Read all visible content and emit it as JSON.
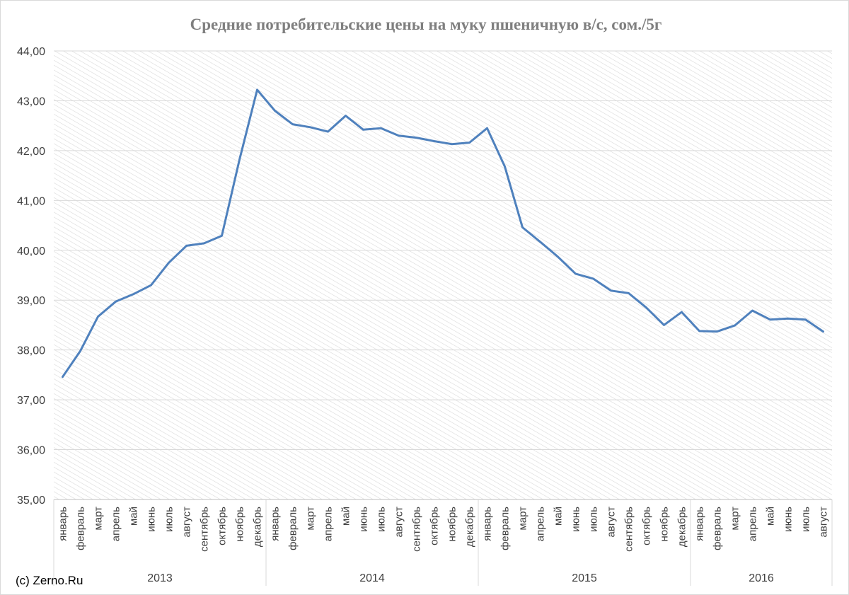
{
  "chart_data": {
    "type": "line",
    "title": "Средние потребительские цены на муку пшеничную в/с, сом./5г",
    "xlabel": "",
    "ylabel": "",
    "ylim": [
      35,
      44
    ],
    "yticks": [
      "35,00",
      "36,00",
      "37,00",
      "38,00",
      "39,00",
      "40,00",
      "41,00",
      "42,00",
      "43,00",
      "44,00"
    ],
    "grid": true,
    "legend": "none",
    "line_color": "#4f81bd",
    "categories": [
      "январь",
      "февраль",
      "март",
      "апрель",
      "май",
      "июнь",
      "июль",
      "август",
      "сентябрь",
      "октябрь",
      "ноябрь",
      "декабрь",
      "январь",
      "февраль",
      "март",
      "апрель",
      "май",
      "июнь",
      "июль",
      "август",
      "сентябрь",
      "октябрь",
      "ноябрь",
      "декабрь",
      "январь",
      "февраль",
      "март",
      "апрель",
      "май",
      "июнь",
      "июль",
      "август",
      "сентябрь",
      "октябрь",
      "ноябрь",
      "декабрь",
      "январь",
      "февраль",
      "март",
      "апрель",
      "май",
      "июнь",
      "июль",
      "август"
    ],
    "groups": [
      {
        "label": "2013",
        "count": 12
      },
      {
        "label": "2014",
        "count": 12
      },
      {
        "label": "2015",
        "count": 12
      },
      {
        "label": "2016",
        "count": 8
      }
    ],
    "series": [
      {
        "values": [
          37.46,
          37.98,
          38.67,
          38.97,
          39.12,
          39.3,
          39.75,
          40.09,
          40.14,
          40.29,
          41.82,
          43.22,
          42.8,
          42.53,
          42.47,
          42.38,
          42.7,
          42.42,
          42.45,
          42.3,
          42.26,
          42.19,
          42.13,
          42.16,
          42.45,
          41.68,
          40.46,
          40.17,
          39.87,
          39.53,
          39.43,
          39.19,
          39.14,
          38.85,
          38.5,
          38.76,
          38.38,
          38.37,
          38.49,
          38.79,
          38.61,
          38.63,
          38.61,
          38.37
        ]
      }
    ]
  },
  "credit": "(c) Zerno.Ru"
}
